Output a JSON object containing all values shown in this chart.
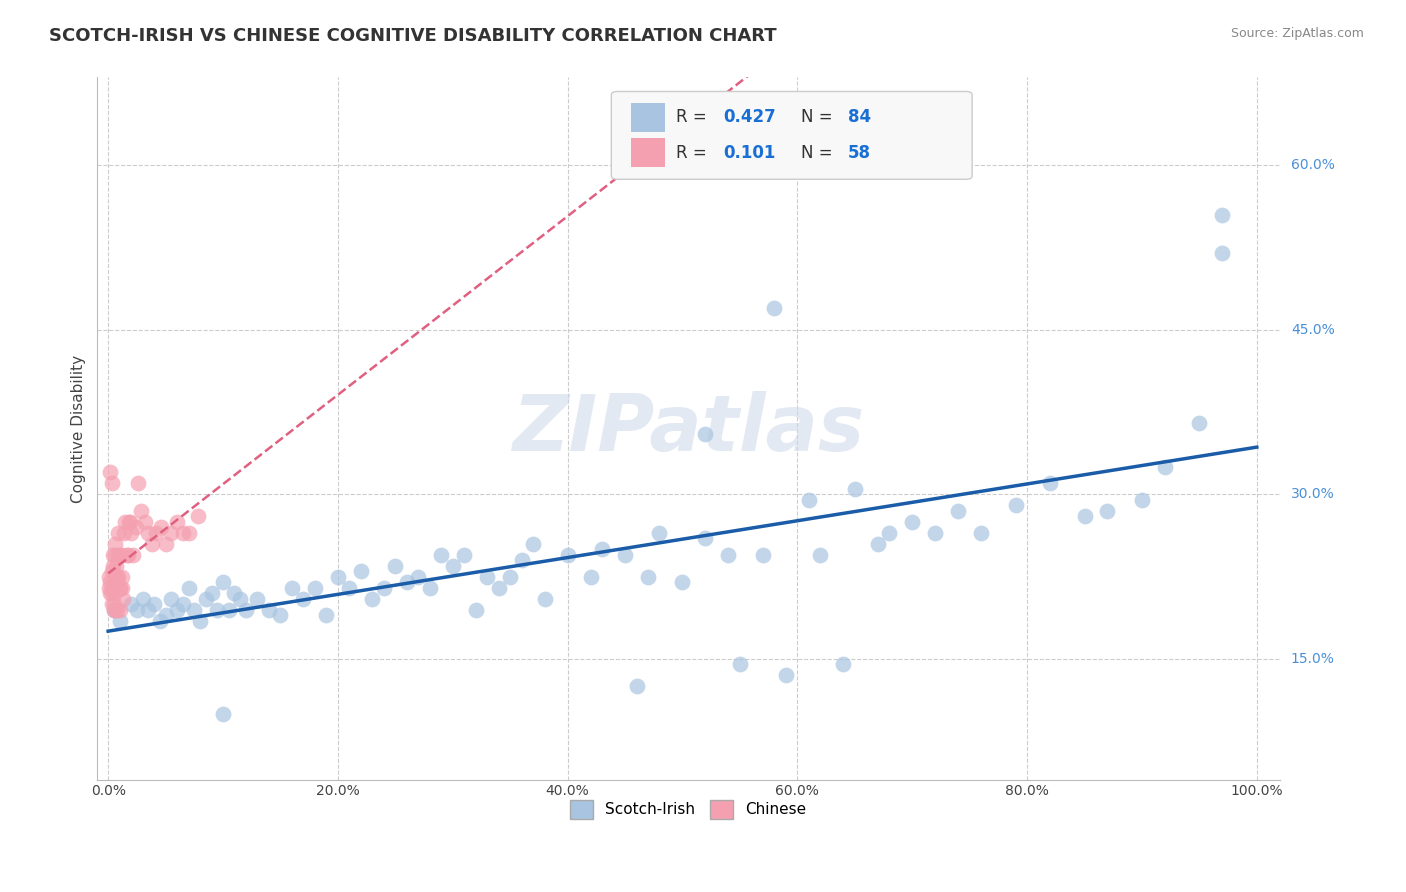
{
  "title": "SCOTCH-IRISH VS CHINESE COGNITIVE DISABILITY CORRELATION CHART",
  "source": "Source: ZipAtlas.com",
  "xlabel": "",
  "ylabel": "Cognitive Disability",
  "xlim": [
    -0.01,
    1.02
  ],
  "ylim": [
    0.04,
    0.68
  ],
  "xticks": [
    0.0,
    0.2,
    0.4,
    0.6,
    0.8,
    1.0
  ],
  "xticklabels": [
    "0.0%",
    "20.0%",
    "40.0%",
    "60.0%",
    "80.0%",
    "100.0%"
  ],
  "ytick_positions": [
    0.15,
    0.3,
    0.45,
    0.6
  ],
  "yticklabels": [
    "15.0%",
    "30.0%",
    "45.0%",
    "60.0%"
  ],
  "scotch_irish_R": 0.427,
  "scotch_irish_N": 84,
  "chinese_R": 0.101,
  "chinese_N": 58,
  "scotch_irish_color": "#a8c4e0",
  "chinese_color": "#f4a0b0",
  "scotch_irish_line_color": "#1a5ca8",
  "chinese_line_color": "#e06080",
  "background_color": "#ffffff",
  "grid_color": "#cccccc",
  "title_fontsize": 13,
  "axis_label_fontsize": 11,
  "tick_fontsize": 10,
  "legend_R_color": "#1a6fd4",
  "legend_N_color": "#1a6fd4",
  "watermark_text": "ZIPatlas",
  "scotch_irish_x": [
    0.005,
    0.01,
    0.02,
    0.025,
    0.03,
    0.035,
    0.04,
    0.045,
    0.05,
    0.055,
    0.06,
    0.065,
    0.07,
    0.075,
    0.08,
    0.085,
    0.09,
    0.095,
    0.1,
    0.105,
    0.11,
    0.115,
    0.12,
    0.13,
    0.14,
    0.15,
    0.16,
    0.17,
    0.18,
    0.19,
    0.2,
    0.21,
    0.22,
    0.23,
    0.24,
    0.25,
    0.26,
    0.27,
    0.28,
    0.29,
    0.3,
    0.31,
    0.32,
    0.33,
    0.34,
    0.35,
    0.36,
    0.37,
    0.38,
    0.4,
    0.42,
    0.43,
    0.45,
    0.46,
    0.47,
    0.48,
    0.5,
    0.52,
    0.54,
    0.55,
    0.57,
    0.59,
    0.61,
    0.62,
    0.64,
    0.65,
    0.67,
    0.68,
    0.7,
    0.72,
    0.74,
    0.76,
    0.79,
    0.82,
    0.85,
    0.87,
    0.9,
    0.92,
    0.95,
    0.97,
    0.52,
    0.58,
    0.1,
    0.97
  ],
  "scotch_irish_y": [
    0.195,
    0.185,
    0.2,
    0.195,
    0.205,
    0.195,
    0.2,
    0.185,
    0.19,
    0.205,
    0.195,
    0.2,
    0.215,
    0.195,
    0.185,
    0.205,
    0.21,
    0.195,
    0.22,
    0.195,
    0.21,
    0.205,
    0.195,
    0.205,
    0.195,
    0.19,
    0.215,
    0.205,
    0.215,
    0.19,
    0.225,
    0.215,
    0.23,
    0.205,
    0.215,
    0.235,
    0.22,
    0.225,
    0.215,
    0.245,
    0.235,
    0.245,
    0.195,
    0.225,
    0.215,
    0.225,
    0.24,
    0.255,
    0.205,
    0.245,
    0.225,
    0.25,
    0.245,
    0.125,
    0.225,
    0.265,
    0.22,
    0.26,
    0.245,
    0.145,
    0.245,
    0.135,
    0.295,
    0.245,
    0.145,
    0.305,
    0.255,
    0.265,
    0.275,
    0.265,
    0.285,
    0.265,
    0.29,
    0.31,
    0.28,
    0.285,
    0.295,
    0.325,
    0.365,
    0.555,
    0.355,
    0.47,
    0.1,
    0.52
  ],
  "chinese_x": [
    0.001,
    0.001,
    0.002,
    0.002,
    0.003,
    0.003,
    0.003,
    0.004,
    0.004,
    0.004,
    0.005,
    0.005,
    0.005,
    0.005,
    0.006,
    0.006,
    0.006,
    0.007,
    0.007,
    0.007,
    0.008,
    0.008,
    0.008,
    0.009,
    0.009,
    0.009,
    0.01,
    0.01,
    0.01,
    0.011,
    0.011,
    0.012,
    0.012,
    0.013,
    0.014,
    0.015,
    0.016,
    0.017,
    0.018,
    0.019,
    0.02,
    0.022,
    0.024,
    0.026,
    0.029,
    0.032,
    0.035,
    0.038,
    0.042,
    0.046,
    0.05,
    0.055,
    0.06,
    0.065,
    0.07,
    0.078,
    0.002,
    0.003
  ],
  "chinese_y": [
    0.225,
    0.215,
    0.22,
    0.21,
    0.23,
    0.21,
    0.2,
    0.235,
    0.215,
    0.245,
    0.22,
    0.2,
    0.195,
    0.215,
    0.21,
    0.245,
    0.255,
    0.225,
    0.195,
    0.235,
    0.215,
    0.225,
    0.195,
    0.225,
    0.245,
    0.265,
    0.215,
    0.215,
    0.195,
    0.245,
    0.245,
    0.225,
    0.215,
    0.205,
    0.265,
    0.275,
    0.245,
    0.245,
    0.275,
    0.275,
    0.265,
    0.245,
    0.27,
    0.31,
    0.285,
    0.275,
    0.265,
    0.255,
    0.265,
    0.27,
    0.255,
    0.265,
    0.275,
    0.265,
    0.265,
    0.28,
    0.32,
    0.31
  ]
}
